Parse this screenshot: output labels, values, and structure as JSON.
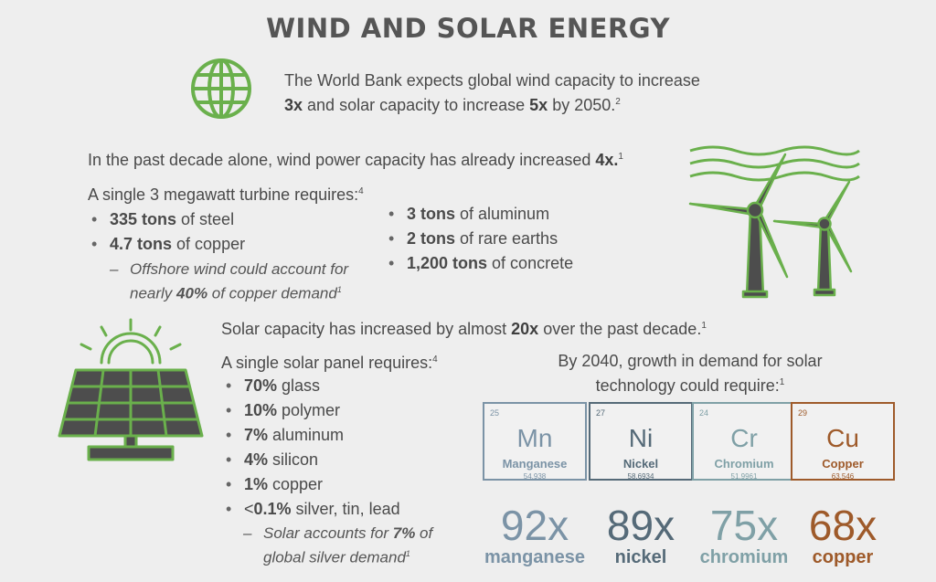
{
  "title": "WIND AND SOLAR ENERGY",
  "intro": {
    "line1": "The World Bank expects global wind capacity to increase",
    "line2_b1": "3x",
    "line2_t1": " and solar capacity to increase ",
    "line2_b2": "5x",
    "line2_t2": " by 2050.",
    "line2_sup": "2"
  },
  "wind": {
    "decade_text": "In the past decade alone, wind power capacity has already increased ",
    "decade_bold": "4x.",
    "decade_sup": "1",
    "turbine_heading": "A single 3 megawatt turbine requires:",
    "turbine_sup": "4",
    "left_items": [
      {
        "bold": "335 tons",
        "text": " of steel"
      },
      {
        "bold": "4.7 tons",
        "text": " of copper"
      }
    ],
    "sub_line1": "Offshore wind could account for",
    "sub_line2_pre": "nearly ",
    "sub_line2_bold": "40%",
    "sub_line2_post": " of copper demand",
    "sub_sup": "1",
    "right_items": [
      {
        "bold": "3 tons",
        "text": " of aluminum"
      },
      {
        "bold": "2 tons",
        "text": " of rare earths"
      },
      {
        "bold": "1,200 tons",
        "text": " of concrete"
      }
    ]
  },
  "solar": {
    "growth_pre": "Solar capacity has increased by almost ",
    "growth_bold": "20x",
    "growth_post": " over the past decade.",
    "growth_sup": "1",
    "panel_heading": "A single solar panel requires:",
    "panel_sup": "4",
    "items": [
      {
        "bold": "70%",
        "text": " glass"
      },
      {
        "bold": "10%",
        "text": " polymer"
      },
      {
        "bold": "7%",
        "text": " aluminum"
      },
      {
        "bold": "4%",
        "text": " silicon"
      },
      {
        "bold": "1%",
        "text": " copper"
      },
      {
        "pre": "<",
        "bold": "0.1%",
        "text": " silver, tin, lead"
      }
    ],
    "sub_line1_pre": "Solar accounts for ",
    "sub_line1_bold": "7%",
    "sub_line1_post": " of",
    "sub_line2": "global silver demand",
    "sub_sup": "1",
    "demand_line1": "By 2040, growth in demand for solar",
    "demand_line2": "technology could require:",
    "demand_sup": "1"
  },
  "elements": [
    {
      "number": "25",
      "symbol": "Mn",
      "name": "Manganese",
      "weight": "54.938",
      "multiple": "92x",
      "label": "manganese",
      "color": "#7b93a6"
    },
    {
      "number": "27",
      "symbol": "Ni",
      "name": "Nickel",
      "weight": "58.6934",
      "multiple": "89x",
      "label": "nickel",
      "color": "#556a78"
    },
    {
      "number": "24",
      "symbol": "Cr",
      "name": "Chromium",
      "weight": "51.9961",
      "multiple": "75x",
      "label": "chromium",
      "color": "#7fa0a6"
    },
    {
      "number": "29",
      "symbol": "Cu",
      "name": "Copper",
      "weight": "63.546",
      "multiple": "68x",
      "label": "copper",
      "color": "#9e5a2a"
    }
  ],
  "colors": {
    "accent_green": "#6ab04c",
    "icon_dark": "#4d4d4d"
  }
}
